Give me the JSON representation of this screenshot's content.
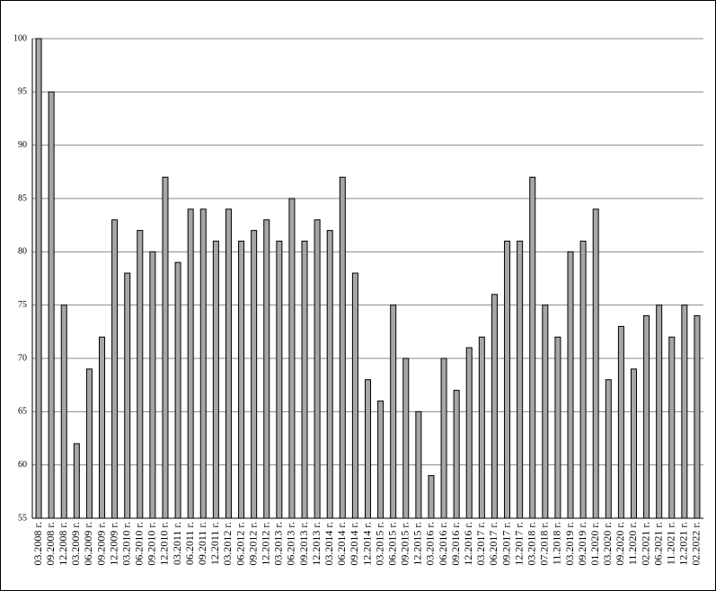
{
  "chart_data": {
    "type": "bar",
    "categories": [
      "03.2008 г.",
      "09.2008 г.",
      "12.2008 г.",
      "03.2009 г.",
      "06.2009 г.",
      "09.2009 г.",
      "12.2009 г.",
      "03.2010 г.",
      "06.2010 г.",
      "09.2010 г.",
      "12.2010 г.",
      "03.2011 г.",
      "06.2011 г.",
      "09.2011 г.",
      "12.2011 г.",
      "03.2012 г.",
      "06.2012 г.",
      "09.2012 г.",
      "12.2012 г.",
      "03.2013 г.",
      "06.2013 г.",
      "09.2013 г.",
      "12.2013 г.",
      "03.2014 г.",
      "06.2014 г.",
      "09.2014 г.",
      "12.2014 г.",
      "03.2015 г.",
      "06.2015 г.",
      "09.2015 г.",
      "12.2015 г.",
      "03.2016 г.",
      "06.2016 г.",
      "09.2016 г.",
      "12.2016 г.",
      "03.2017 г.",
      "06.2017 г.",
      "09.2017 г.",
      "12.2017 г.",
      "03.2018 г.",
      "07.2018 г.",
      "11.2018 г.",
      "03.2019 г.",
      "09.2019 г.",
      "01.2020 г.",
      "03.2020 г.",
      "09.2020 г.",
      "11.2020 г.",
      "02.2021 г.",
      "06.2021 г.",
      "11.2021 г.",
      "12.2021 г.",
      "02.2022 г."
    ],
    "values": [
      100,
      95,
      75,
      62,
      69,
      72,
      83,
      78,
      82,
      80,
      87,
      79,
      84,
      84,
      81,
      84,
      81,
      82,
      83,
      81,
      85,
      81,
      83,
      82,
      87,
      78,
      68,
      66,
      75,
      70,
      65,
      59,
      70,
      67,
      71,
      72,
      76,
      81,
      81,
      87,
      75,
      72,
      80,
      81,
      84,
      68,
      73,
      69,
      74,
      75,
      72,
      75,
      74
    ],
    "color": "#a6a6a6",
    "ylim": [
      55,
      100
    ],
    "yticks": [
      55,
      60,
      65,
      70,
      75,
      80,
      85,
      90,
      95,
      100
    ],
    "grid": true
  }
}
